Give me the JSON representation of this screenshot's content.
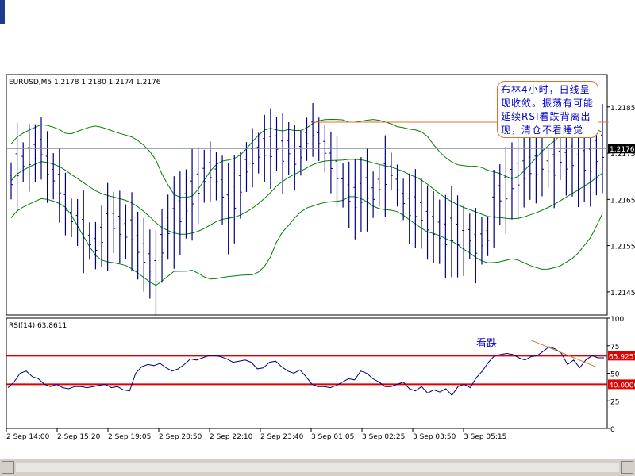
{
  "chart_data": [
    {
      "type": "line",
      "symbol_header": "EURUSD,M5",
      "ohlc_header": "1.2178 1.2180 1.2174 1.2176",
      "price_label": "1.2176",
      "ylim": [
        1.214,
        1.2192
      ],
      "yticks": [
        "1.2185",
        "1.2175",
        "1.2165",
        "1.2155",
        "1.2145"
      ],
      "horizontal_price_line": 1.2176,
      "resistance_line": {
        "from_index": 50,
        "to_index": 99,
        "value": 1.21817
      },
      "series": [
        {
          "values": [
            1.2169,
            1.2172,
            1.2173,
            1.2174,
            1.2175,
            1.2176,
            1.2172,
            1.217,
            1.2168,
            1.2164,
            1.2161,
            1.216,
            1.2158,
            1.2156,
            1.2155,
            1.2157,
            1.2159,
            1.216,
            1.2159,
            1.2158,
            1.2158,
            1.2155,
            1.2153,
            1.2151,
            1.2149,
            1.2155,
            1.2159,
            1.216,
            1.2162,
            1.2164,
            1.2166,
            1.2168,
            1.217,
            1.2171,
            1.217,
            1.2167,
            1.2163,
            1.2165,
            1.2168,
            1.2172,
            1.2174,
            1.2175,
            1.2176,
            1.2176,
            1.2177,
            1.2175,
            1.2176,
            1.2174,
            1.2175,
            1.2178,
            1.218,
            1.2178,
            1.2176,
            1.2173,
            1.2171,
            1.2168,
            1.2166,
            1.2165,
            1.2166,
            1.2167,
            1.2166,
            1.2168,
            1.217,
            1.2171,
            1.2168,
            1.2165,
            1.2163,
            1.2163,
            1.2162,
            1.216,
            1.2159,
            1.2158,
            1.2157,
            1.2158,
            1.2157,
            1.2156,
            1.2157,
            1.2155,
            1.2156,
            1.2157,
            1.2163,
            1.2166,
            1.2167,
            1.2169,
            1.217,
            1.2171,
            1.2172,
            1.2172,
            1.2173,
            1.2172,
            1.2172,
            1.2174,
            1.2173,
            1.2174,
            1.2172,
            1.2173,
            1.2173,
            1.2175,
            1.2176
          ]
        }
      ]
    },
    {
      "type": "line",
      "indicator_header": "RSI(14)  63.8611",
      "ylim": [
        0,
        100
      ],
      "yticks": [
        "100",
        "75",
        "50",
        "25",
        "0"
      ],
      "levels": [
        {
          "value": 65.9257,
          "label": "65.9257",
          "color": "#e00000"
        },
        {
          "value": 40.0,
          "label": "40.0000",
          "color": "#e00000"
        }
      ],
      "annotation": "看跌",
      "series": [
        {
          "color": "#000080",
          "values": [
            37,
            42,
            50,
            52,
            47,
            45,
            40,
            38,
            40,
            37,
            36,
            38,
            38,
            37,
            38,
            39,
            40,
            37,
            38,
            35,
            34,
            50,
            56,
            58,
            57,
            59,
            55,
            52,
            54,
            58,
            63,
            62,
            64,
            66,
            66,
            65,
            63,
            60,
            61,
            62,
            60,
            54,
            55,
            60,
            61,
            56,
            52,
            50,
            53,
            47,
            40,
            38,
            38,
            37,
            39,
            42,
            45,
            44,
            52,
            50,
            45,
            42,
            38,
            38,
            40,
            42,
            36,
            34,
            38,
            32,
            35,
            33,
            36,
            30,
            38,
            40,
            37,
            46,
            52,
            60,
            66,
            67,
            68,
            67,
            64,
            62,
            65,
            66,
            70,
            74,
            72,
            68,
            58,
            62,
            55,
            62,
            66,
            64,
            64
          ]
        }
      ]
    },
    {
      "type": "line",
      "x_ticklabels": [
        "2 Sep 14:00",
        "2 Sep 15:20",
        "2 Sep 19:05",
        "2 Sep 20:50",
        "2 Sep 22:10",
        "2 Sep 23:40",
        "3 Sep 01:05",
        "3 Sep 02:25",
        "3 Sep 03:50",
        "3 Sep 05:15"
      ]
    }
  ],
  "annotation_text": "布林4小时，日线呈现收敛。振荡有可能延续RSI看跌背离出现，清仓不看睡觉",
  "colors": {
    "grid_border": "#000000",
    "price_bars": "#000080",
    "bollinger": "#008000",
    "rsi_line": "#000080",
    "level_line": "#e00000",
    "resistance": "#e0702a",
    "price_label_bg": "#000000"
  }
}
